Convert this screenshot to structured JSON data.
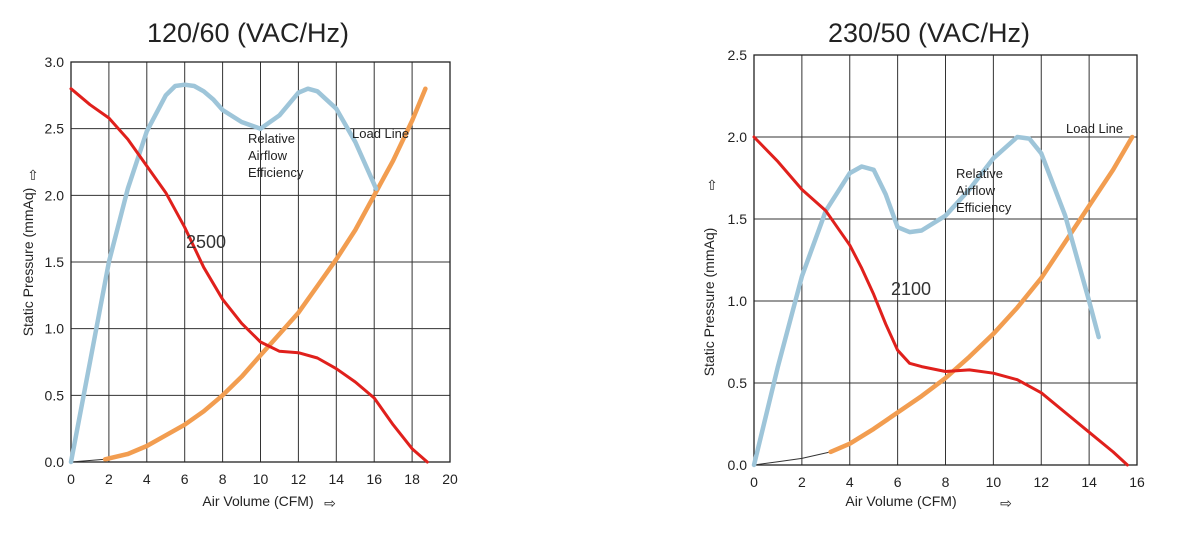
{
  "chart_data": [
    {
      "type": "line",
      "title": "120/60 (VAC/Hz)",
      "xlabel": "Air Volume (CFM)",
      "ylabel": "Static Pressure (mmAq)",
      "xlim": [
        0,
        20
      ],
      "ylim": [
        0,
        3.0
      ],
      "xticks": [
        "0",
        "2",
        "4",
        "6",
        "8",
        "10",
        "12",
        "14",
        "16",
        "18",
        "20"
      ],
      "yticks": [
        "0.0",
        "0.5",
        "1.0",
        "1.5",
        "2.0",
        "2.5",
        "3.0"
      ],
      "grid": true,
      "series": [
        {
          "name": "2500",
          "color": "#e0201c",
          "x": [
            0,
            1,
            2,
            3,
            4,
            5,
            6,
            7,
            8,
            9,
            10,
            11,
            12,
            13,
            14,
            15,
            16,
            17,
            18,
            18.8
          ],
          "y": [
            2.8,
            2.68,
            2.58,
            2.42,
            2.22,
            2.02,
            1.76,
            1.46,
            1.22,
            1.04,
            0.9,
            0.83,
            0.82,
            0.78,
            0.7,
            0.6,
            0.48,
            0.28,
            0.1,
            0.0
          ]
        },
        {
          "name": "Relative Airflow Efficiency",
          "color": "#9ec5d9",
          "x": [
            0,
            1,
            2,
            3,
            4,
            5,
            5.5,
            6,
            6.5,
            7,
            7.5,
            8,
            9,
            10,
            11,
            12,
            12.5,
            13,
            14,
            15,
            16.1
          ],
          "y": [
            0.0,
            0.75,
            1.5,
            2.05,
            2.48,
            2.75,
            2.82,
            2.83,
            2.82,
            2.78,
            2.72,
            2.64,
            2.55,
            2.5,
            2.6,
            2.77,
            2.8,
            2.78,
            2.65,
            2.4,
            2.05
          ]
        },
        {
          "name": "Load Line",
          "color": "#f29d50",
          "x": [
            1.8,
            3,
            4,
            5,
            6,
            7,
            8,
            9,
            10,
            11,
            12,
            13,
            14,
            15,
            16,
            17,
            18,
            18.7
          ],
          "y": [
            0.02,
            0.06,
            0.12,
            0.2,
            0.28,
            0.38,
            0.5,
            0.64,
            0.8,
            0.96,
            1.12,
            1.32,
            1.52,
            1.74,
            2.0,
            2.26,
            2.56,
            2.8
          ]
        }
      ],
      "thin_segment": {
        "x": [
          0,
          1.8
        ],
        "y": [
          0.0,
          0.02
        ]
      },
      "annotations": {
        "rpm": "2500",
        "efficiency": [
          "Relative",
          "Airflow",
          "Efficiency"
        ],
        "load_line": "Load Line"
      },
      "arrows": {
        "x": "⇨",
        "y": "⇧"
      }
    },
    {
      "type": "line",
      "title": "230/50 (VAC/Hz)",
      "xlabel": "Air Volume (CFM)",
      "ylabel": "Static Pressure (mmAq)",
      "xlim": [
        0,
        16
      ],
      "ylim": [
        0,
        2.5
      ],
      "xticks": [
        "0",
        "2",
        "4",
        "6",
        "8",
        "10",
        "12",
        "14",
        "16"
      ],
      "yticks": [
        "0.0",
        "0.5",
        "1.0",
        "1.5",
        "2.0",
        "2.5"
      ],
      "grid": true,
      "series": [
        {
          "name": "2100",
          "color": "#e0201c",
          "x": [
            0,
            1,
            2,
            3,
            4,
            4.5,
            5,
            5.5,
            6,
            6.5,
            7,
            8,
            9,
            10,
            11,
            12,
            13,
            14,
            15,
            15.6
          ],
          "y": [
            2.0,
            1.85,
            1.68,
            1.55,
            1.34,
            1.2,
            1.04,
            0.86,
            0.7,
            0.62,
            0.6,
            0.57,
            0.58,
            0.56,
            0.52,
            0.44,
            0.32,
            0.2,
            0.08,
            0.0
          ]
        },
        {
          "name": "Relative Airflow Efficiency",
          "color": "#9ec5d9",
          "x": [
            0,
            1,
            2,
            3,
            4,
            4.5,
            5,
            5.5,
            6,
            6.5,
            7,
            8,
            9,
            10,
            11,
            11.5,
            12,
            13,
            14,
            14.4
          ],
          "y": [
            0.0,
            0.6,
            1.15,
            1.55,
            1.78,
            1.82,
            1.8,
            1.65,
            1.45,
            1.42,
            1.43,
            1.52,
            1.68,
            1.87,
            2.0,
            1.99,
            1.9,
            1.52,
            1.0,
            0.78
          ]
        },
        {
          "name": "Load Line",
          "color": "#f29d50",
          "x": [
            3.2,
            4,
            5,
            6,
            7,
            8,
            9,
            10,
            11,
            12,
            13,
            14,
            15,
            15.8
          ],
          "y": [
            0.08,
            0.13,
            0.22,
            0.32,
            0.42,
            0.53,
            0.66,
            0.8,
            0.96,
            1.14,
            1.36,
            1.58,
            1.8,
            2.0
          ]
        }
      ],
      "thin_segment": {
        "x": [
          0,
          1,
          2,
          3.2
        ],
        "y": [
          0.0,
          0.02,
          0.04,
          0.08
        ]
      },
      "annotations": {
        "rpm": "2100",
        "efficiency": [
          "Relative",
          "Airflow",
          "Efficiency"
        ],
        "load_line": "Load Line"
      },
      "arrows": {
        "x": "⇨",
        "y": "⇧"
      }
    }
  ]
}
